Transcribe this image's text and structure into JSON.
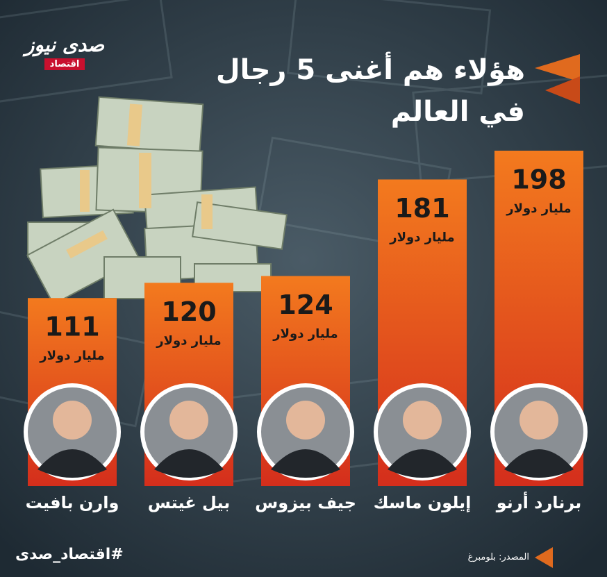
{
  "chart_data": {
    "type": "bar",
    "title_line1": "هؤلاء هم أغنى 5 رجال",
    "title_line2": "في العالم",
    "logo_text": "صدى نيوز",
    "logo_sub": "اقتصاد",
    "categories": [
      "برنارد أرنو",
      "إيلون ماسك",
      "جيف بيزوس",
      "بيل غيتس",
      "وارن بافيت"
    ],
    "values": [
      198,
      181,
      124,
      120,
      111
    ],
    "unit_label": "مليار دولار",
    "color": "#f37a1e",
    "hashtag": "#اقتصاد_صدى",
    "source": "المصدر: بلومبرغ"
  }
}
